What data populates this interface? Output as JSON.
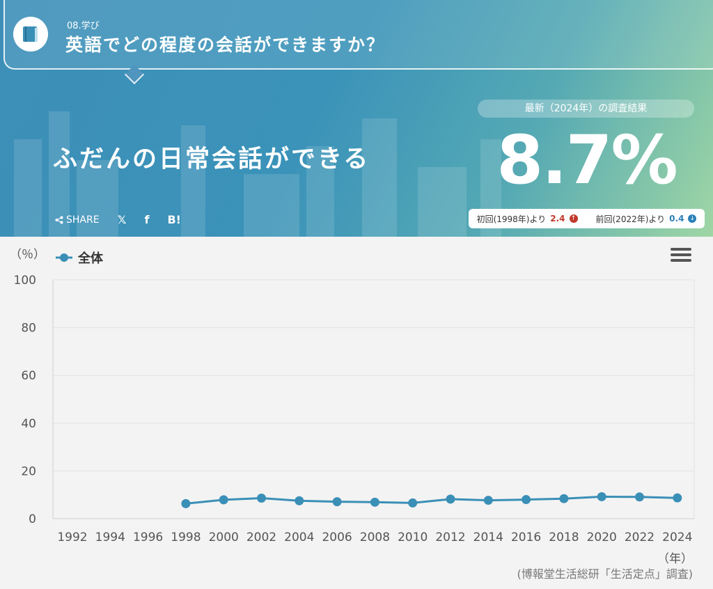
{
  "header": {
    "category": "08.学び",
    "question": "英語でどの程度の会話ができますか？",
    "headline": "ふだんの日常会話ができる",
    "share": {
      "share_label": "SHARE",
      "x_label": "𝕏",
      "facebook_label": "f",
      "hatena_label": "B!"
    }
  },
  "latest": {
    "label": "最新（2024年）の調査結果",
    "value": "8.7%",
    "first": {
      "label": "初回(1998年)より",
      "value": "2.4",
      "direction": "up"
    },
    "previous": {
      "label": "前回(2022年)より",
      "value": "0.4",
      "direction": "down"
    }
  },
  "colors": {
    "accent": "#3a8fb7",
    "up": "#c0392b",
    "down": "#2a7fb8"
  },
  "icons": {
    "category_icon": "book-icon",
    "menu": "hamburger-menu-icon",
    "share": "share-icon"
  },
  "chart_data": {
    "type": "line",
    "y_unit_label": "（％）",
    "x_unit_label": "（年）",
    "source": "(博報堂生活総研「生活定点」調査)",
    "categories": [
      "1992",
      "1994",
      "1996",
      "1998",
      "2000",
      "2002",
      "2004",
      "2006",
      "2008",
      "2010",
      "2012",
      "2014",
      "2016",
      "2018",
      "2020",
      "2022",
      "2024"
    ],
    "series": [
      {
        "name": "全体",
        "values": [
          null,
          null,
          null,
          6.3,
          7.9,
          8.6,
          7.5,
          7.1,
          6.9,
          6.6,
          8.2,
          7.7,
          8.0,
          8.4,
          9.2,
          9.1,
          8.7
        ]
      }
    ],
    "ylim": [
      0,
      100
    ],
    "yticks": [
      0,
      20,
      40,
      60,
      80,
      100
    ],
    "grid": true,
    "legend": "top-left"
  }
}
